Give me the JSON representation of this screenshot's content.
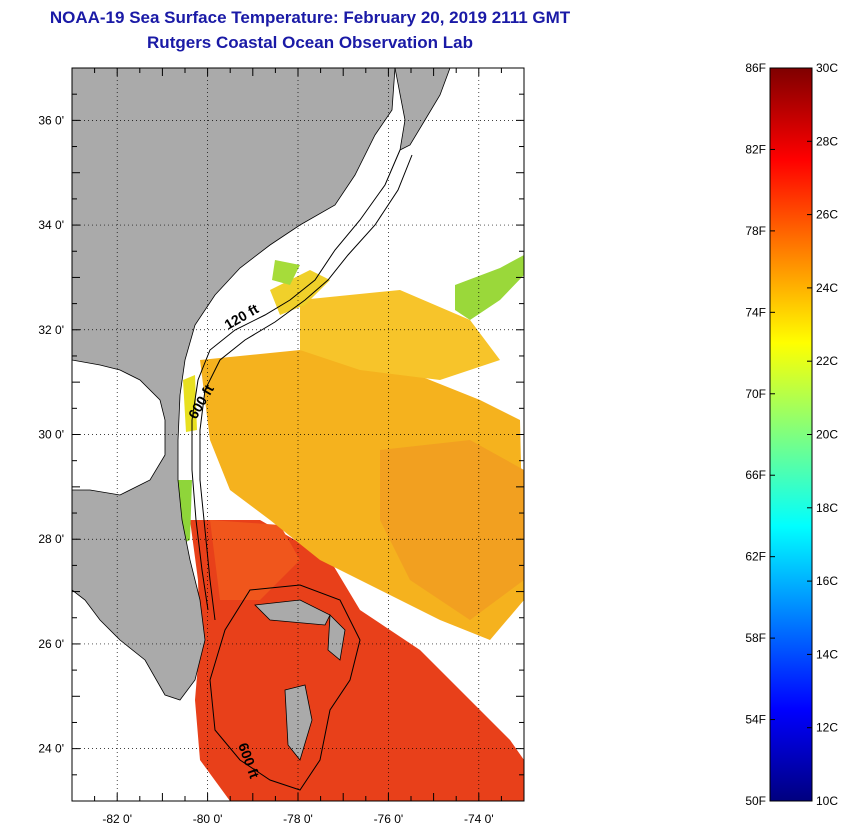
{
  "title": {
    "line1": "NOAA-19 Sea Surface Temperature:  February 20, 2019 2111 GMT",
    "line2": "Rutgers Coastal Ocean Observation Lab"
  },
  "map": {
    "lon_range": [
      -83,
      -73
    ],
    "lat_range": [
      23,
      37
    ],
    "lon_ticks": [
      "-82 0'",
      "-80 0'",
      "-78 0'",
      "-76 0'",
      "-74 0'"
    ],
    "lon_tick_values": [
      -82,
      -80,
      -78,
      -76,
      -74
    ],
    "lat_ticks": [
      "36 0'",
      "34 0'",
      "32 0'",
      "30 0'",
      "28 0'",
      "26 0'",
      "24 0'"
    ],
    "lat_tick_values": [
      36,
      34,
      32,
      30,
      28,
      26,
      24
    ],
    "contour_labels": [
      "120 ft",
      "600 ft",
      "600 ft"
    ],
    "colors": {
      "land": "#aaaaaa",
      "ocean_nodata": "#ffffff",
      "gulf_stream": "#e8401a",
      "warm_offshore": "#f5b21e",
      "green_shelf": "#9ad83a"
    }
  },
  "colorbar": {
    "fahrenheit_labels": [
      "86F",
      "82F",
      "78F",
      "74F",
      "70F",
      "66F",
      "62F",
      "58F",
      "54F",
      "50F"
    ],
    "celsius_labels": [
      "30C",
      "28C",
      "26C",
      "24C",
      "22C",
      "20C",
      "18C",
      "16C",
      "14C",
      "12C",
      "10C"
    ],
    "f_range": [
      50,
      86
    ],
    "c_range": [
      10,
      30
    ],
    "colors": [
      "#00007f",
      "#0000ff",
      "#007fff",
      "#00ffff",
      "#7fff7f",
      "#ffff00",
      "#ff7f00",
      "#ff0000",
      "#7f0000"
    ]
  }
}
